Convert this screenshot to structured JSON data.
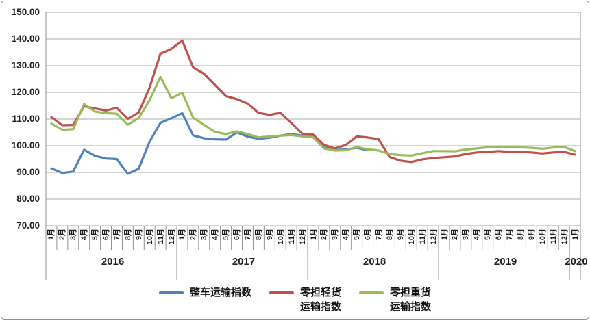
{
  "chart_data": {
    "type": "line",
    "title": "",
    "grid": true,
    "legend_position": "bottom",
    "ylim": [
      70,
      150
    ],
    "y_ticks": [
      "150.00",
      "140.00",
      "130.00",
      "120.00",
      "110.00",
      "100.00",
      "90.00",
      "80.00",
      "70.00"
    ],
    "x_axis": {
      "month_labels": [
        "1月",
        "2月",
        "3月",
        "4月",
        "5月",
        "6月",
        "7月",
        "8月",
        "9月",
        "10月",
        "11月",
        "12月",
        "1月",
        "2月",
        "3月",
        "4月",
        "5月",
        "6月",
        "7月",
        "8月",
        "9月",
        "10月",
        "11月",
        "12月",
        "1月",
        "2月",
        "3月",
        "4月",
        "5月",
        "6月",
        "7月",
        "8月",
        "9月",
        "10月",
        "11月",
        "12月",
        "1月",
        "2月",
        "3月",
        "4月",
        "5月",
        "6月",
        "7月",
        "8月",
        "9月",
        "10月",
        "11月",
        "12月",
        "1月"
      ],
      "year_labels": [
        "2016",
        "2017",
        "2018",
        "2019",
        "2020"
      ],
      "months_per_year": [
        12,
        12,
        12,
        12,
        1
      ]
    },
    "series": [
      {
        "name": "整车运输指数",
        "legend_lines": [
          "整车运输指数"
        ],
        "color": "#4F81BD",
        "values": [
          91.5,
          89.8,
          90.3,
          98.5,
          96.2,
          95.2,
          95.0,
          89.5,
          91.3,
          101.5,
          108.6,
          110.3,
          112.2,
          103.9,
          102.8,
          102.4,
          102.3,
          105.0,
          103.4,
          102.6,
          103.0,
          103.8,
          104.4,
          103.8,
          103.6,
          99.3,
          98.4,
          98.6,
          99.2,
          98.3,
          null,
          null,
          null,
          null,
          null,
          null,
          null,
          null,
          null,
          null,
          null,
          null,
          null,
          null,
          null,
          null,
          null,
          null,
          null
        ]
      },
      {
        "name": "零担轻货运输指数",
        "legend_lines": [
          "零担轻货",
          "运输指数"
        ],
        "color": "#C0504D",
        "values": [
          110.7,
          107.7,
          107.8,
          114.8,
          114.0,
          113.2,
          114.2,
          110.1,
          112.4,
          121.7,
          134.5,
          136.3,
          139.4,
          129.3,
          127.0,
          122.8,
          118.6,
          117.5,
          115.8,
          112.3,
          111.6,
          112.3,
          108.5,
          104.5,
          104.2,
          100.3,
          99.0,
          100.3,
          103.5,
          103.1,
          102.5,
          95.8,
          94.4,
          93.9,
          94.9,
          95.4,
          95.7,
          96.0,
          96.9,
          97.5,
          97.7,
          98.0,
          97.7,
          97.7,
          97.5,
          97.1,
          97.5,
          97.7,
          96.7
        ]
      },
      {
        "name": "零担重货运输指数",
        "legend_lines": [
          "零担重货",
          "运输指数"
        ],
        "color": "#9BBB59",
        "values": [
          108.3,
          106.0,
          106.2,
          115.6,
          112.8,
          112.2,
          112.0,
          107.9,
          110.3,
          117.0,
          125.8,
          117.8,
          119.9,
          110.5,
          107.8,
          105.2,
          104.4,
          105.4,
          104.4,
          103.1,
          103.5,
          103.8,
          104.0,
          103.5,
          103.2,
          99.0,
          98.2,
          98.3,
          99.5,
          98.7,
          98.2,
          96.9,
          96.5,
          96.3,
          97.2,
          98.0,
          98.0,
          97.9,
          98.6,
          99.0,
          99.4,
          99.5,
          99.5,
          99.4,
          99.2,
          98.9,
          99.3,
          99.6,
          98.0
        ]
      }
    ],
    "colors": {
      "gridline": "#ABABAB",
      "axis": "#8f8f8f",
      "text": "#1f1f1f"
    }
  }
}
